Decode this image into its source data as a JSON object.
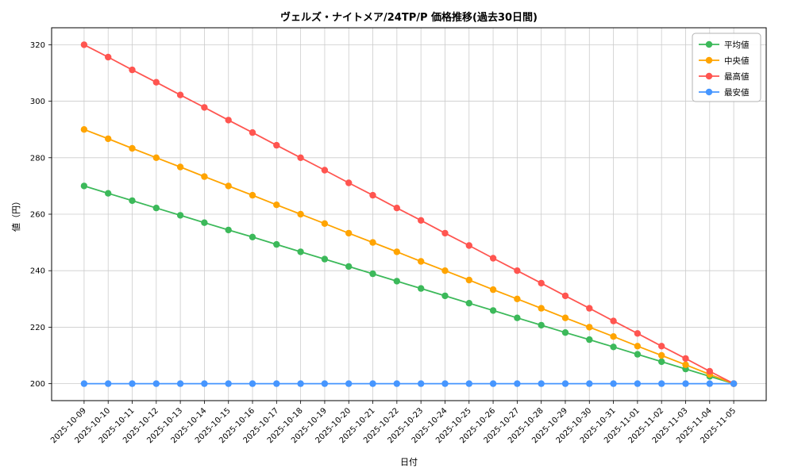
{
  "figure": {
    "title": "ヴェルズ・ナイトメア/24TP/P 価格推移(過去30日間)",
    "xlabel": "日付",
    "ylabel": "値（円）"
  },
  "chart_data": {
    "type": "line",
    "title": "ヴェルズ・ナイトメア/24TP/P 価格推移(過去30日間)",
    "xlabel": "日付",
    "ylabel": "値（円）",
    "grid": true,
    "legend_position": "upper right",
    "ylim": [
      194,
      326
    ],
    "yticks": [
      200,
      220,
      240,
      260,
      280,
      300,
      320
    ],
    "x": [
      "2025-10-09",
      "2025-10-10",
      "2025-10-11",
      "2025-10-12",
      "2025-10-13",
      "2025-10-14",
      "2025-10-15",
      "2025-10-16",
      "2025-10-17",
      "2025-10-18",
      "2025-10-19",
      "2025-10-20",
      "2025-10-21",
      "2025-10-22",
      "2025-10-23",
      "2025-10-24",
      "2025-10-25",
      "2025-10-26",
      "2025-10-27",
      "2025-10-28",
      "2025-10-29",
      "2025-10-30",
      "2025-10-31",
      "2025-11-01",
      "2025-11-02",
      "2025-11-03",
      "2025-11-04",
      "2025-11-05"
    ],
    "series": [
      {
        "id": "average",
        "name": "平均値",
        "color": "#3cb95a",
        "values": [
          270.0,
          267.4,
          264.8,
          262.2,
          259.6,
          257.0,
          254.4,
          251.9,
          249.3,
          246.7,
          244.1,
          241.5,
          238.9,
          236.3,
          233.7,
          231.1,
          228.5,
          225.9,
          223.3,
          220.7,
          218.1,
          215.6,
          213.0,
          210.4,
          207.8,
          205.2,
          202.6,
          200.0
        ]
      },
      {
        "id": "median",
        "name": "中央値",
        "color": "#ffa400",
        "values": [
          290.0,
          286.7,
          283.3,
          280.0,
          276.7,
          273.3,
          270.0,
          266.7,
          263.3,
          260.0,
          256.7,
          253.3,
          250.0,
          246.7,
          243.3,
          240.0,
          236.7,
          233.3,
          230.0,
          226.7,
          223.3,
          220.0,
          216.7,
          213.3,
          210.0,
          206.7,
          203.3,
          200.0
        ]
      },
      {
        "id": "max",
        "name": "最高値",
        "color": "#ff5550",
        "values": [
          320.0,
          315.6,
          311.1,
          306.7,
          302.2,
          297.8,
          293.3,
          288.9,
          284.4,
          280.0,
          275.6,
          271.1,
          266.7,
          262.2,
          257.8,
          253.3,
          248.9,
          244.4,
          240.0,
          235.6,
          231.1,
          226.7,
          222.2,
          217.8,
          213.3,
          208.9,
          204.4,
          200.0
        ]
      },
      {
        "id": "min",
        "name": "最安値",
        "color": "#4696ff",
        "values": [
          200.0,
          200.0,
          200.0,
          200.0,
          200.0,
          200.0,
          200.0,
          200.0,
          200.0,
          200.0,
          200.0,
          200.0,
          200.0,
          200.0,
          200.0,
          200.0,
          200.0,
          200.0,
          200.0,
          200.0,
          200.0,
          200.0,
          200.0,
          200.0,
          200.0,
          200.0,
          200.0,
          200.0
        ]
      }
    ]
  }
}
